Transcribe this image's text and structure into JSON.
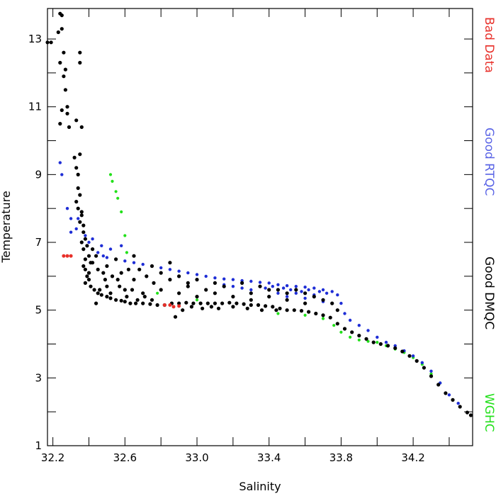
{
  "chart_data": {
    "type": "scatter",
    "xlabel": "Salinity",
    "ylabel": "Temperature",
    "xlim": [
      32.17,
      34.53
    ],
    "ylim": [
      1,
      13.9
    ],
    "grid": false,
    "legend_position": "right (vertical text)",
    "x_ticks": [
      {
        "v": 32.2,
        "label": "32.2"
      },
      {
        "v": 32.6,
        "label": "32.6"
      },
      {
        "v": 33.0,
        "label": "33.0"
      },
      {
        "v": 33.4,
        "label": "33.4"
      },
      {
        "v": 33.8,
        "label": "33.8"
      },
      {
        "v": 34.2,
        "label": "34.2"
      }
    ],
    "x_minor_ticks": [
      32.4,
      32.8,
      33.2,
      33.6,
      34.0,
      34.4
    ],
    "y_ticks": [
      {
        "v": 1,
        "label": "1"
      },
      {
        "v": 3,
        "label": "3"
      },
      {
        "v": 5,
        "label": "5"
      },
      {
        "v": 7,
        "label": "7"
      },
      {
        "v": 9,
        "label": "9"
      },
      {
        "v": 11,
        "label": "11"
      },
      {
        "v": 13,
        "label": "13"
      }
    ],
    "y_minor_ticks": [
      2,
      4,
      6,
      8,
      10,
      12
    ],
    "series": [
      {
        "name": "Good DMQC",
        "color": "#000000",
        "radius": 2.6,
        "points": [
          [
            32.17,
            12.9
          ],
          [
            32.19,
            12.9
          ],
          [
            32.24,
            13.75
          ],
          [
            32.25,
            13.7
          ],
          [
            32.23,
            13.2
          ],
          [
            32.25,
            13.3
          ],
          [
            32.26,
            12.6
          ],
          [
            32.24,
            12.3
          ],
          [
            32.27,
            12.1
          ],
          [
            32.26,
            11.9
          ],
          [
            32.27,
            11.5
          ],
          [
            32.28,
            11.0
          ],
          [
            32.25,
            10.9
          ],
          [
            32.28,
            10.8
          ],
          [
            32.24,
            10.5
          ],
          [
            32.29,
            10.4
          ],
          [
            32.35,
            12.6
          ],
          [
            32.35,
            12.3
          ],
          [
            32.36,
            10.4
          ],
          [
            32.33,
            10.6
          ],
          [
            32.35,
            9.6
          ],
          [
            32.32,
            9.5
          ],
          [
            32.33,
            9.2
          ],
          [
            32.34,
            9.0
          ],
          [
            32.34,
            8.6
          ],
          [
            32.33,
            8.2
          ],
          [
            32.35,
            8.4
          ],
          [
            32.34,
            8.0
          ],
          [
            32.36,
            7.9
          ],
          [
            32.35,
            7.6
          ],
          [
            32.37,
            7.3
          ],
          [
            32.36,
            7.0
          ],
          [
            32.37,
            6.8
          ],
          [
            32.38,
            6.5
          ],
          [
            32.38,
            6.2
          ],
          [
            32.39,
            6.0
          ],
          [
            32.4,
            5.9
          ],
          [
            32.41,
            5.7
          ],
          [
            32.43,
            5.6
          ],
          [
            32.45,
            5.5
          ],
          [
            32.47,
            5.45
          ],
          [
            32.5,
            5.4
          ],
          [
            32.52,
            5.35
          ],
          [
            32.55,
            5.3
          ],
          [
            32.58,
            5.28
          ],
          [
            32.6,
            5.25
          ],
          [
            32.63,
            5.2
          ],
          [
            32.66,
            5.2
          ],
          [
            32.7,
            5.2
          ],
          [
            32.74,
            5.18
          ],
          [
            32.78,
            5.15
          ],
          [
            32.82,
            5.15
          ],
          [
            32.86,
            5.2
          ],
          [
            32.9,
            5.2
          ],
          [
            32.94,
            5.22
          ],
          [
            32.98,
            5.2
          ],
          [
            33.02,
            5.2
          ],
          [
            33.06,
            5.2
          ],
          [
            33.1,
            5.2
          ],
          [
            33.14,
            5.2
          ],
          [
            33.18,
            5.22
          ],
          [
            33.22,
            5.2
          ],
          [
            33.26,
            5.18
          ],
          [
            33.3,
            5.15
          ],
          [
            33.34,
            5.15
          ],
          [
            33.38,
            5.12
          ],
          [
            33.42,
            5.1
          ],
          [
            33.46,
            5.05
          ],
          [
            33.5,
            5.0
          ],
          [
            33.54,
            5.0
          ],
          [
            33.58,
            4.98
          ],
          [
            33.62,
            4.95
          ],
          [
            33.66,
            4.9
          ],
          [
            33.7,
            4.85
          ],
          [
            33.74,
            4.78
          ],
          [
            33.78,
            4.6
          ],
          [
            33.82,
            4.45
          ],
          [
            33.86,
            4.35
          ],
          [
            33.9,
            4.25
          ],
          [
            33.94,
            4.15
          ],
          [
            33.98,
            4.05
          ],
          [
            34.02,
            4.0
          ],
          [
            34.06,
            3.95
          ],
          [
            34.1,
            3.88
          ],
          [
            34.14,
            3.78
          ],
          [
            34.18,
            3.65
          ],
          [
            34.22,
            3.5
          ],
          [
            34.26,
            3.3
          ],
          [
            34.3,
            3.05
          ],
          [
            34.34,
            2.8
          ],
          [
            34.38,
            2.55
          ],
          [
            34.42,
            2.35
          ],
          [
            34.46,
            2.15
          ],
          [
            34.5,
            1.98
          ],
          [
            34.52,
            1.9
          ],
          [
            32.4,
            6.6
          ],
          [
            32.42,
            6.4
          ],
          [
            32.45,
            6.2
          ],
          [
            32.48,
            6.1
          ],
          [
            32.5,
            6.3
          ],
          [
            32.53,
            6.0
          ],
          [
            32.56,
            5.9
          ],
          [
            32.58,
            6.1
          ],
          [
            32.62,
            6.2
          ],
          [
            32.65,
            5.9
          ],
          [
            32.68,
            6.2
          ],
          [
            32.72,
            6.0
          ],
          [
            32.76,
            5.8
          ],
          [
            32.8,
            6.1
          ],
          [
            32.85,
            5.9
          ],
          [
            32.9,
            6.0
          ],
          [
            32.95,
            5.7
          ],
          [
            33.0,
            5.9
          ],
          [
            33.05,
            5.6
          ],
          [
            33.1,
            5.8
          ],
          [
            32.5,
            5.7
          ],
          [
            32.6,
            5.6
          ],
          [
            32.7,
            5.5
          ],
          [
            32.8,
            5.6
          ],
          [
            32.9,
            5.5
          ],
          [
            33.0,
            5.4
          ],
          [
            33.1,
            5.5
          ],
          [
            33.2,
            5.4
          ],
          [
            33.3,
            5.5
          ],
          [
            33.4,
            5.6
          ],
          [
            32.55,
            6.5
          ],
          [
            32.65,
            6.6
          ],
          [
            32.75,
            6.3
          ],
          [
            32.85,
            6.4
          ],
          [
            32.95,
            5.8
          ],
          [
            33.15,
            5.7
          ],
          [
            33.25,
            5.8
          ],
          [
            33.35,
            5.7
          ],
          [
            33.45,
            5.6
          ],
          [
            33.5,
            5.5
          ],
          [
            33.55,
            5.6
          ],
          [
            33.6,
            5.5
          ],
          [
            33.65,
            5.4
          ],
          [
            33.7,
            5.3
          ],
          [
            33.75,
            5.2
          ],
          [
            33.78,
            5.0
          ],
          [
            33.6,
            5.2
          ],
          [
            33.5,
            5.3
          ],
          [
            33.4,
            5.4
          ],
          [
            33.3,
            5.3
          ],
          [
            32.88,
            4.8
          ],
          [
            32.92,
            5.0
          ],
          [
            32.97,
            5.1
          ],
          [
            33.03,
            5.05
          ],
          [
            33.08,
            5.1
          ],
          [
            33.12,
            5.05
          ],
          [
            33.2,
            5.1
          ],
          [
            33.28,
            5.05
          ],
          [
            33.36,
            5.0
          ],
          [
            33.44,
            5.0
          ],
          [
            32.44,
            5.2
          ],
          [
            32.46,
            5.6
          ],
          [
            32.49,
            5.9
          ],
          [
            32.52,
            5.5
          ],
          [
            32.57,
            5.7
          ],
          [
            32.61,
            5.4
          ],
          [
            32.64,
            5.6
          ],
          [
            32.67,
            5.3
          ],
          [
            32.71,
            5.4
          ],
          [
            32.75,
            5.3
          ],
          [
            32.37,
            7.5
          ],
          [
            32.38,
            7.1
          ],
          [
            32.36,
            7.8
          ],
          [
            32.39,
            6.9
          ],
          [
            32.37,
            6.3
          ],
          [
            32.4,
            6.1
          ],
          [
            32.38,
            5.8
          ],
          [
            32.41,
            6.4
          ],
          [
            32.42,
            6.8
          ],
          [
            32.44,
            6.6
          ]
        ]
      },
      {
        "name": "Good RTQC",
        "color": "#1f2ed6",
        "radius": 2.2,
        "points": [
          [
            32.24,
            9.35
          ],
          [
            32.25,
            9.0
          ],
          [
            32.28,
            8.0
          ],
          [
            32.3,
            7.7
          ],
          [
            32.3,
            7.3
          ],
          [
            32.33,
            7.4
          ],
          [
            32.38,
            7.2
          ],
          [
            32.4,
            7.0
          ],
          [
            32.42,
            6.8
          ],
          [
            32.45,
            6.7
          ],
          [
            32.48,
            6.6
          ],
          [
            32.5,
            6.55
          ],
          [
            32.55,
            6.5
          ],
          [
            32.6,
            6.45
          ],
          [
            32.65,
            6.4
          ],
          [
            32.7,
            6.35
          ],
          [
            32.75,
            6.3
          ],
          [
            32.8,
            6.25
          ],
          [
            32.85,
            6.2
          ],
          [
            32.9,
            6.15
          ],
          [
            32.95,
            6.1
          ],
          [
            33.0,
            6.05
          ],
          [
            33.05,
            6.0
          ],
          [
            33.1,
            5.95
          ],
          [
            33.15,
            5.92
          ],
          [
            33.2,
            5.9
          ],
          [
            33.25,
            5.87
          ],
          [
            33.3,
            5.85
          ],
          [
            33.35,
            5.82
          ],
          [
            33.4,
            5.8
          ],
          [
            33.45,
            5.75
          ],
          [
            33.5,
            5.72
          ],
          [
            33.55,
            5.7
          ],
          [
            33.6,
            5.68
          ],
          [
            33.65,
            5.65
          ],
          [
            33.7,
            5.6
          ],
          [
            33.75,
            5.55
          ],
          [
            33.78,
            5.45
          ],
          [
            33.8,
            5.2
          ],
          [
            33.82,
            4.9
          ],
          [
            33.85,
            4.7
          ],
          [
            33.9,
            4.55
          ],
          [
            33.95,
            4.4
          ],
          [
            34.0,
            4.2
          ],
          [
            34.05,
            4.05
          ],
          [
            34.1,
            3.95
          ],
          [
            34.15,
            3.8
          ],
          [
            34.2,
            3.65
          ],
          [
            34.25,
            3.45
          ],
          [
            34.3,
            3.2
          ],
          [
            34.35,
            2.85
          ],
          [
            34.4,
            2.5
          ],
          [
            34.45,
            2.25
          ],
          [
            32.34,
            7.7
          ],
          [
            32.36,
            7.9
          ],
          [
            32.37,
            7.5
          ],
          [
            32.42,
            7.1
          ],
          [
            32.47,
            6.9
          ],
          [
            32.52,
            6.8
          ],
          [
            32.58,
            6.9
          ],
          [
            33.45,
            5.5
          ],
          [
            33.5,
            5.4
          ],
          [
            33.55,
            5.5
          ],
          [
            33.6,
            5.35
          ],
          [
            33.65,
            5.45
          ],
          [
            33.7,
            5.25
          ],
          [
            33.72,
            5.5
          ],
          [
            33.68,
            5.55
          ],
          [
            33.62,
            5.6
          ],
          [
            33.58,
            5.55
          ],
          [
            33.52,
            5.6
          ],
          [
            33.48,
            5.65
          ],
          [
            33.42,
            5.7
          ],
          [
            33.38,
            5.65
          ],
          [
            33.35,
            5.7
          ],
          [
            33.3,
            5.6
          ],
          [
            33.25,
            5.65
          ],
          [
            33.2,
            5.7
          ],
          [
            33.15,
            5.75
          ]
        ]
      },
      {
        "name": "Bad Data",
        "color": "#e8302a",
        "radius": 2.5,
        "points": [
          [
            32.26,
            6.6
          ],
          [
            32.28,
            6.6
          ],
          [
            32.3,
            6.6
          ],
          [
            32.82,
            5.15
          ],
          [
            32.85,
            5.15
          ],
          [
            32.87,
            5.1
          ],
          [
            32.9,
            5.12
          ]
        ]
      },
      {
        "name": "WGHC",
        "color": "#22e01a",
        "radius": 2.1,
        "points": [
          [
            32.52,
            9.0
          ],
          [
            32.53,
            8.8
          ],
          [
            32.55,
            8.5
          ],
          [
            32.56,
            8.3
          ],
          [
            32.58,
            7.9
          ],
          [
            32.6,
            7.2
          ],
          [
            32.61,
            6.7
          ],
          [
            32.78,
            5.5
          ],
          [
            33.0,
            5.3
          ],
          [
            33.45,
            4.9
          ],
          [
            33.6,
            4.85
          ],
          [
            33.7,
            4.75
          ],
          [
            33.76,
            4.55
          ],
          [
            33.8,
            4.35
          ],
          [
            33.85,
            4.2
          ],
          [
            33.9,
            4.12
          ],
          [
            33.95,
            4.08
          ],
          [
            34.0,
            4.05
          ],
          [
            34.05,
            3.95
          ],
          [
            34.1,
            3.85
          ],
          [
            34.15,
            3.75
          ],
          [
            34.2,
            3.6
          ],
          [
            34.25,
            3.4
          ],
          [
            34.3,
            3.12
          ],
          [
            34.35,
            2.85
          ]
        ]
      }
    ]
  },
  "legend": [
    {
      "text": "Bad Data",
      "color": "#e8302a"
    },
    {
      "text": "Good RTQC",
      "color": "#5a64e6"
    },
    {
      "text": "Good DMQC",
      "color": "#000000"
    },
    {
      "text": "WGHC",
      "color": "#22e01a"
    }
  ]
}
